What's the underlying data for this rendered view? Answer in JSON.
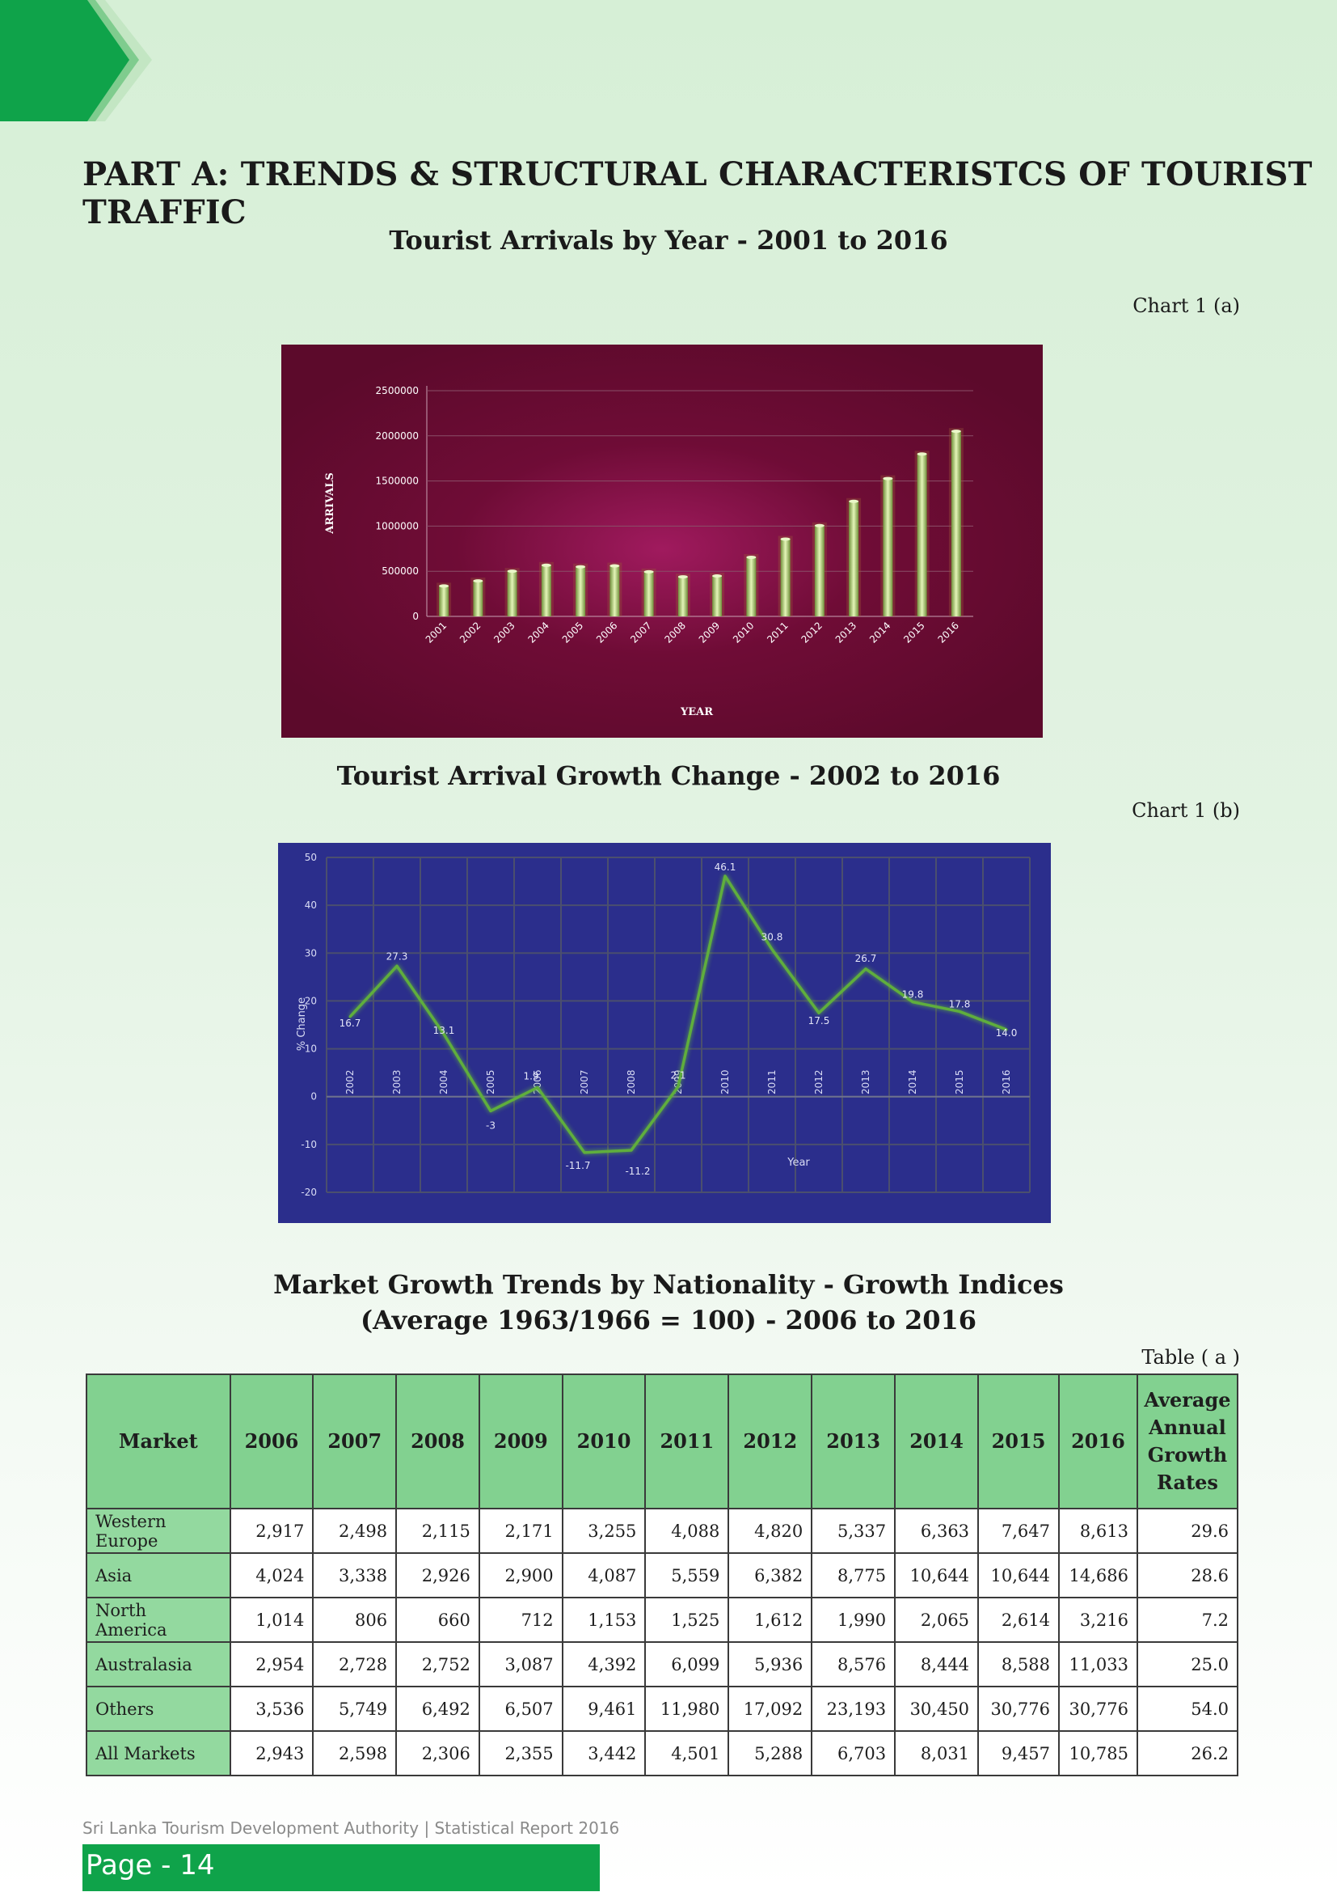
{
  "page": {
    "part_title": "PART A: TRENDS & STRUCTURAL CHARACTERISTCS OF TOURIST TRAFFIC",
    "chart1a_title": "Tourist Arrivals by Year - 2001 to 2016",
    "chart1a_ref": "Chart 1 (a)",
    "chart1b_title": "Tourist Arrival Growth Change - 2002 to 2016",
    "chart1b_ref": "Chart 1 (b)",
    "table_title_line1": "Market Growth Trends by Nationality - Growth Indices",
    "table_title_line2": "(Average 1963/1966 = 100) - 2006 to 2016",
    "table_ref": "Table ( a )",
    "footer_text": "Sri Lanka Tourism Development Authority  |  Statistical Report 2016",
    "page_label": "Page - 14"
  },
  "colors": {
    "brand_green": "#0fa34a",
    "chart1a_bg": "#5e0a2c",
    "chart1b_bg": "#2b2e8c",
    "bar_green": "#a7d37f",
    "line_green": "#5aa43a",
    "table_header": "#82d190"
  },
  "chart_data": [
    {
      "type": "bar",
      "categories": [
        "2001",
        "2002",
        "2003",
        "2004",
        "2005",
        "2006",
        "2007",
        "2008",
        "2009",
        "2010",
        "2011",
        "2012",
        "2013",
        "2014",
        "2015",
        "2016"
      ],
      "values": [
        336794,
        393171,
        500642,
        566202,
        549308,
        559603,
        494008,
        438475,
        447890,
        654476,
        855975,
        1005605,
        1274593,
        1527153,
        1798380,
        2050832
      ],
      "xlabel": "YEAR",
      "ylabel": "ARRIVALS",
      "ylim": [
        0,
        2500000
      ],
      "yticks": [
        0,
        500000,
        1000000,
        1500000,
        2000000,
        2500000
      ],
      "grid": true
    },
    {
      "type": "line",
      "x": [
        "2002",
        "2003",
        "2004",
        "2005",
        "2006",
        "2007",
        "2008",
        "2009",
        "2010",
        "2011",
        "2012",
        "2013",
        "2014",
        "2015",
        "2016"
      ],
      "values": [
        16.7,
        27.3,
        13.1,
        -3,
        1.9,
        -11.7,
        -11.2,
        2.1,
        46.1,
        30.8,
        17.5,
        26.7,
        19.8,
        17.8,
        14.0
      ],
      "labels": [
        "16.7",
        "27.3",
        "13.1",
        "-3",
        "1.9",
        "-11.7",
        "-11.2",
        "2.1",
        "46.1",
        "30.8",
        "17.5",
        "26.7",
        "19.8",
        "17.8",
        "14.0"
      ],
      "xlabel": "Year",
      "ylabel": "% Change",
      "ylim": [
        -20,
        50
      ],
      "yticks": [
        -20,
        -10,
        0,
        10,
        20,
        30,
        40,
        50
      ],
      "grid": true
    }
  ],
  "table": {
    "headers": [
      "Market",
      "2006",
      "2007",
      "2008",
      "2009",
      "2010",
      "2011",
      "2012",
      "2013",
      "2014",
      "2015",
      "2016",
      "Average Annual Growth Rates"
    ],
    "rows": [
      [
        "Western Europe",
        "2,917",
        "2,498",
        "2,115",
        "2,171",
        "3,255",
        "4,088",
        "4,820",
        "5,337",
        "6,363",
        "7,647",
        "8,613",
        "29.6"
      ],
      [
        "Asia",
        "4,024",
        "3,338",
        "2,926",
        "2,900",
        "4,087",
        "5,559",
        "6,382",
        "8,775",
        "10,644",
        "10,644",
        "14,686",
        "28.6"
      ],
      [
        "North America",
        "1,014",
        "806",
        "660",
        "712",
        "1,153",
        "1,525",
        "1,612",
        "1,990",
        "2,065",
        "2,614",
        "3,216",
        "7.2"
      ],
      [
        "Australasia",
        "2,954",
        "2,728",
        "2,752",
        "3,087",
        "4,392",
        "6,099",
        "5,936",
        "8,576",
        "8,444",
        "8,588",
        "11,033",
        "25.0"
      ],
      [
        "Others",
        "3,536",
        "5,749",
        "6,492",
        "6,507",
        "9,461",
        "11,980",
        "17,092",
        "23,193",
        "30,450",
        "30,776",
        "30,776",
        "54.0"
      ],
      [
        "All Markets",
        "2,943",
        "2,598",
        "2,306",
        "2,355",
        "3,442",
        "4,501",
        "5,288",
        "6,703",
        "8,031",
        "9,457",
        "10,785",
        "26.2"
      ]
    ]
  }
}
